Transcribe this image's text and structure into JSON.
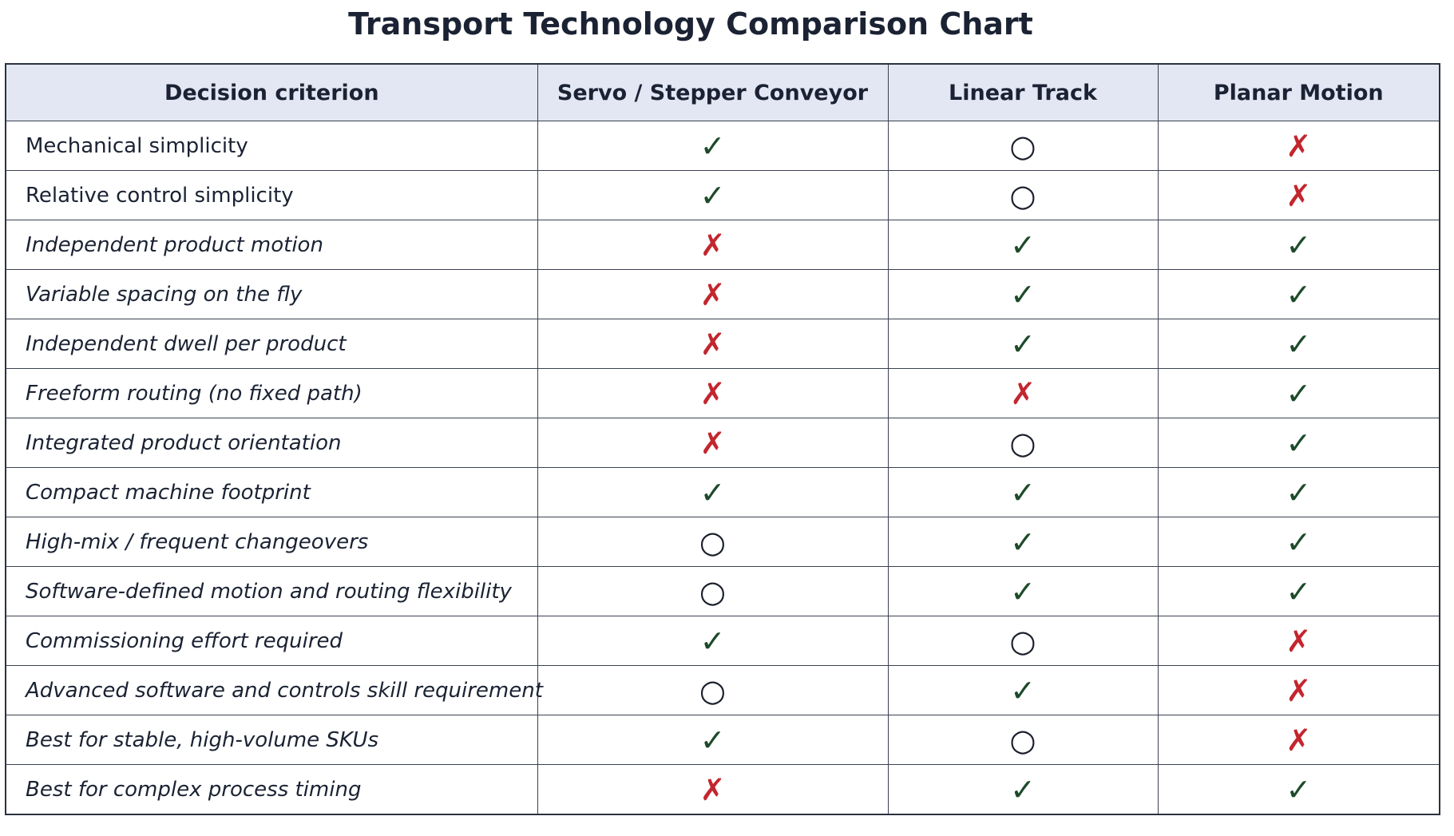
{
  "title": "Transport Technology Comparison Chart",
  "table": {
    "header": [
      "Decision criterion",
      "Servo / Stepper Conveyor",
      "Linear Track",
      "Planar Motion"
    ],
    "rows": [
      [
        "Mechanical simplicity",
        "✓",
        "○",
        "✗"
      ],
      [
        "Relative control simplicity",
        "✓",
        "○",
        "✗"
      ],
      [
        "Independent product motion",
        "✗",
        "✓",
        "✓"
      ],
      [
        "Variable spacing on the fly",
        "✗",
        "✓",
        "✓"
      ],
      [
        "Independent dwell per product",
        "✗",
        "✓",
        "✓"
      ],
      [
        "Freeform routing (no fixed path)",
        "✗",
        "✗",
        "✓"
      ],
      [
        "Integrated product orientation",
        "✗",
        "○",
        "✓"
      ],
      [
        "Compact machine footprint",
        "✓",
        "✓",
        "✓"
      ],
      [
        "High-mix / frequent changeovers",
        "○",
        "✓",
        "✓"
      ],
      [
        "Software-defined motion and routing flexibility",
        "○",
        "✓",
        "✓"
      ],
      [
        "Commissioning effort required",
        "✓",
        "○",
        "✗"
      ],
      [
        "Advanced software and controls skill requirement",
        "○",
        "✓",
        "✗"
      ],
      [
        "Best for stable, high-volume SKUs",
        "✓",
        "○",
        "✗"
      ],
      [
        "Best for complex process timing",
        "✗",
        "✓",
        "✓"
      ]
    ],
    "symbol_colors": {
      "✓": "#1d4a2a",
      "✗": "#c3262e",
      "○": "#1a1f2b"
    }
  }
}
